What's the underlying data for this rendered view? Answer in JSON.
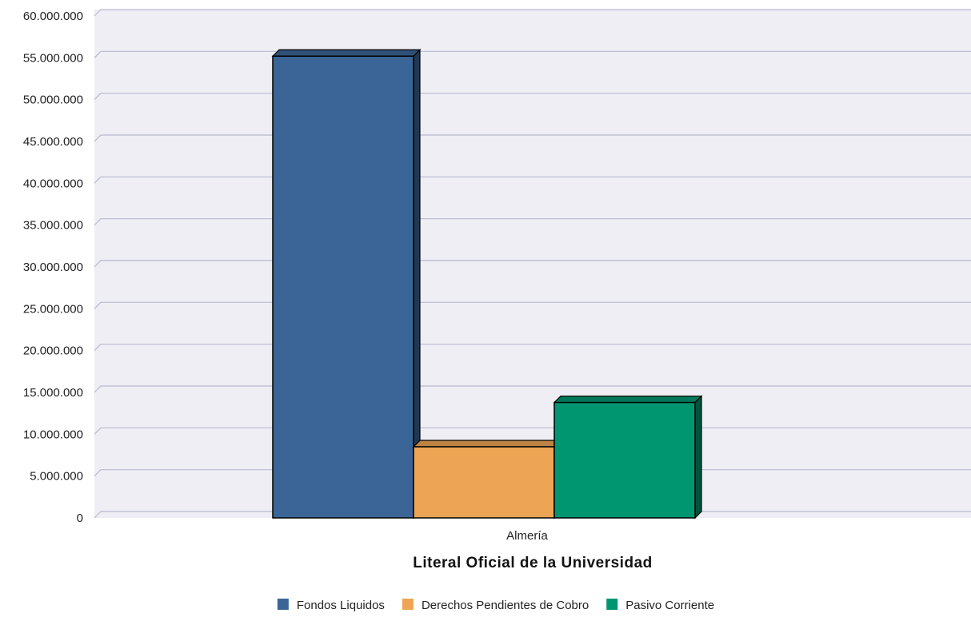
{
  "chart_data": {
    "type": "bar",
    "categories": [
      "Almería"
    ],
    "series": [
      {
        "name": "Fondos Liquidos",
        "values": [
          55200000
        ],
        "color": "#3B6596"
      },
      {
        "name": "Derechos Pendientes de Cobro",
        "values": [
          8500000
        ],
        "color": "#EDA555"
      },
      {
        "name": "Pasivo Corriente",
        "values": [
          13800000
        ],
        "color": "#009670"
      }
    ],
    "xlabel": "Literal Oficial de la Universidad",
    "ylabel": "",
    "ylim": [
      0,
      60000000
    ],
    "yticks": [
      0,
      5000000,
      10000000,
      15000000,
      20000000,
      25000000,
      30000000,
      35000000,
      40000000,
      45000000,
      50000000,
      55000000,
      60000000
    ],
    "ytick_labels": [
      "0",
      "5.000.000",
      "10.000.000",
      "15.000.000",
      "20.000.000",
      "25.000.000",
      "30.000.000",
      "35.000.000",
      "40.000.000",
      "45.000.000",
      "50.000.000",
      "55.000.000",
      "60.000.000"
    ],
    "grid": true,
    "style": "3d",
    "legend_position": "bottom-center",
    "plot_background": "#EEEEF4",
    "grid_color": "#B9B9CF"
  }
}
